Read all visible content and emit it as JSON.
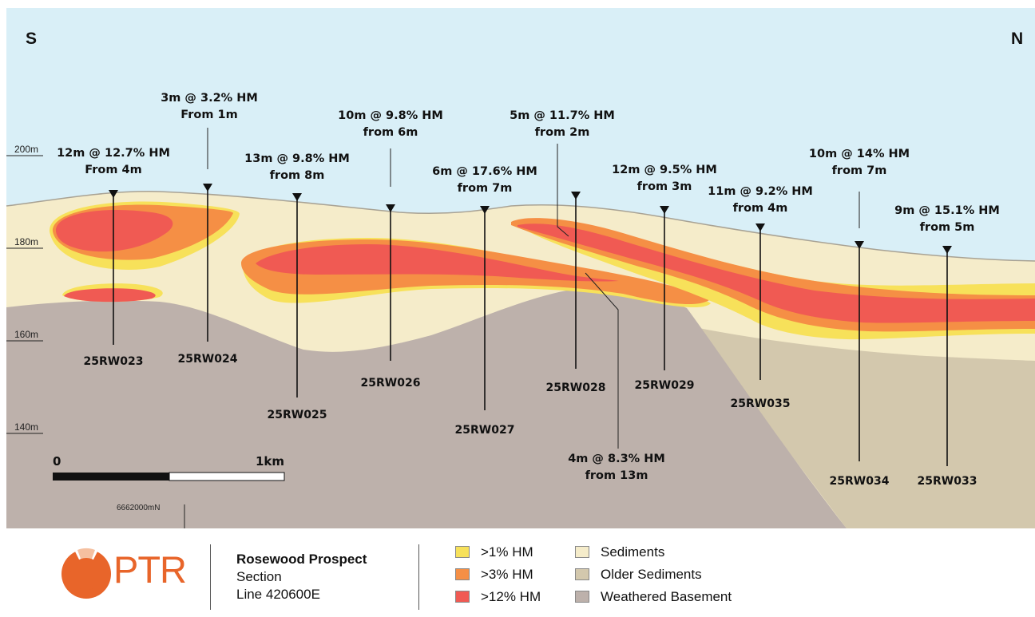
{
  "section": {
    "direction_left": "S",
    "direction_right": "N",
    "elevations": [
      "200m",
      "180m",
      "160m",
      "140m"
    ],
    "scale": {
      "start": "0",
      "end": "1km"
    },
    "northing": "6662000mN",
    "intercepts": [
      {
        "line1": "12m @ 12.7% HM",
        "line2": "From 4m"
      },
      {
        "line1": "3m @ 3.2% HM",
        "line2": "From 1m"
      },
      {
        "line1": "13m @ 9.8% HM",
        "line2": "from 8m"
      },
      {
        "line1": "10m @ 9.8% HM",
        "line2": "from 6m"
      },
      {
        "line1": "6m @ 17.6% HM",
        "line2": "from 7m"
      },
      {
        "line1": "5m @ 11.7% HM",
        "line2": "from 2m"
      },
      {
        "line1": "4m @ 8.3% HM",
        "line2": "from 13m"
      },
      {
        "line1": "12m @ 9.5% HM",
        "line2": "from 3m"
      },
      {
        "line1": "11m @ 9.2% HM",
        "line2": "from 4m"
      },
      {
        "line1": "10m @ 14% HM",
        "line2": "from 7m"
      },
      {
        "line1": "9m @ 15.1% HM",
        "line2": "from 5m"
      }
    ],
    "drillholes": [
      "25RW023",
      "25RW024",
      "25RW025",
      "25RW026",
      "25RW027",
      "25RW028",
      "25RW029",
      "25RW035",
      "25RW034",
      "25RW033"
    ]
  },
  "footer": {
    "logo_text": "PTR",
    "title": "Rosewood Prospect",
    "subtitle": "Section",
    "line": "Line 420600E",
    "legend": [
      {
        "label": ">1% HM",
        "color": "#f7e15a"
      },
      {
        "label": ">3% HM",
        "color": "#f58f45"
      },
      {
        "label": ">12% HM",
        "color": "#f05a53"
      },
      {
        "label": "Sediments",
        "color": "#f5ecca"
      },
      {
        "label": "Older Sediments",
        "color": "#d3c8ad"
      },
      {
        "label": "Weathered Basement",
        "color": "#bdb1ab"
      }
    ],
    "colors": {
      "sky": "#d9eff7",
      "ground_line": "#a8a294",
      "brand": "#e8652a"
    }
  }
}
